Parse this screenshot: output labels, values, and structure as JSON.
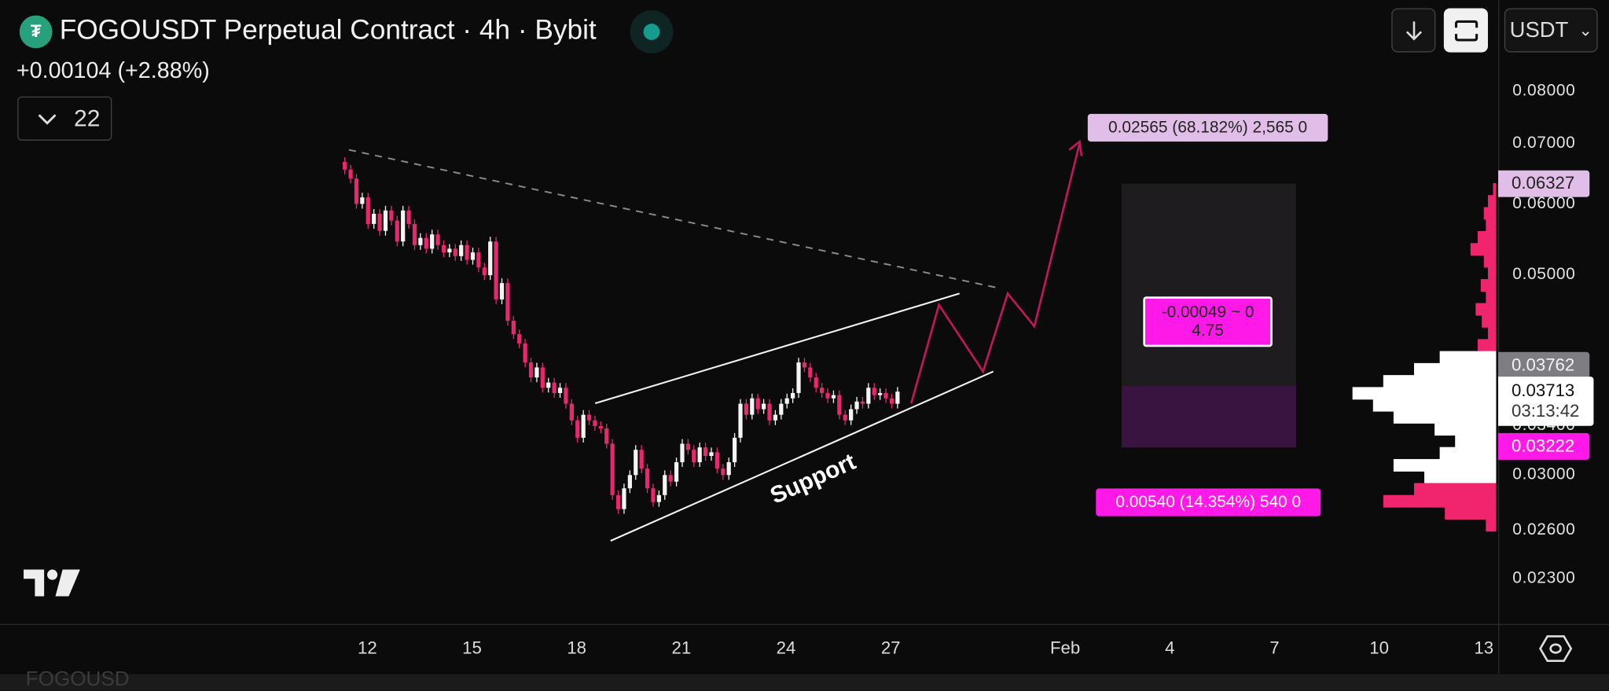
{
  "header": {
    "symbol_title": "FOGOUSDT Perpetual Contract · 4h · Bybit",
    "change": "+0.00104 (+2.88%)",
    "indicators_count": "22",
    "tether_icon": "tether-icon",
    "live_status_color": "#169b8f"
  },
  "toolbar": {
    "scroll_down_icon": "arrow-down-icon",
    "fullscreen_icon": "fullscreen-icon",
    "currency": "USDT",
    "currency_arrow": "⌄"
  },
  "price_axis": {
    "scale": "log",
    "ticks": [
      "0.08000",
      "0.07000",
      "0.06000",
      "0.05000",
      "0.03400",
      "0.03000",
      "0.02600",
      "0.02300"
    ],
    "tags": {
      "target": "0.06327",
      "high": "0.03762",
      "last": "0.03713",
      "countdown": "03:13:42",
      "stop": "0.03222"
    }
  },
  "time_axis": {
    "ticks": [
      "12",
      "15",
      "18",
      "21",
      "24",
      "27",
      "Feb",
      "4",
      "7",
      "10",
      "13"
    ]
  },
  "drawings": {
    "support_label": "Support",
    "position_target": "0.02565 (68.182%) 2,565 0",
    "position_center_line1": "-0.00049 ~ 0",
    "position_center_line2": "4.75",
    "position_stop": "0.00540 (14.354%) 540 0"
  },
  "colors": {
    "up": "#f4f4f4",
    "down": "#e8286e",
    "projection": "#c2185b",
    "target_tag": "#e1bee7",
    "stop_tag": "#ff19e8",
    "last_tag": "#ffffff",
    "high_tag": "#7d7d82"
  },
  "watermark": "FOGOUSD",
  "settings_icon": "gear-hexagon-icon",
  "chart_data": {
    "type": "candlestick",
    "interval": "4h",
    "last_close": 0.03713,
    "closes": [
      0.0655,
      0.064,
      0.06,
      0.061,
      0.057,
      0.0585,
      0.056,
      0.059,
      0.0575,
      0.0545,
      0.059,
      0.057,
      0.054,
      0.055,
      0.0535,
      0.0555,
      0.054,
      0.053,
      0.0535,
      0.0525,
      0.054,
      0.052,
      0.053,
      0.051,
      0.05,
      0.0545,
      0.047,
      0.049,
      0.0445,
      0.043,
      0.042,
      0.04,
      0.0385,
      0.0395,
      0.0375,
      0.038,
      0.037,
      0.0375,
      0.036,
      0.0345,
      0.033,
      0.035,
      0.0345,
      0.034,
      0.0338,
      0.0325,
      0.0285,
      0.0275,
      0.029,
      0.03,
      0.032,
      0.0305,
      0.029,
      0.028,
      0.0285,
      0.03,
      0.0295,
      0.031,
      0.0325,
      0.032,
      0.031,
      0.0322,
      0.0315,
      0.0318,
      0.0305,
      0.03,
      0.031,
      0.033,
      0.036,
      0.035,
      0.0365,
      0.0355,
      0.036,
      0.0345,
      0.035,
      0.036,
      0.0365,
      0.037,
      0.04,
      0.0395,
      0.0385,
      0.0375,
      0.037,
      0.0365,
      0.0368,
      0.035,
      0.0345,
      0.0355,
      0.0362,
      0.036,
      0.0375,
      0.0368,
      0.037,
      0.0365,
      0.036,
      0.03713
    ],
    "volume_profile": {
      "price_range": [
        0.026,
        0.06327
      ],
      "value_area": [
        0.029,
        0.041
      ],
      "volumes_high_to_low": [
        3,
        8,
        12,
        10,
        18,
        25,
        12,
        8,
        15,
        10,
        20,
        14,
        8,
        18,
        55,
        80,
        110,
        140,
        120,
        100,
        60,
        40,
        55,
        100,
        70,
        80,
        110,
        50,
        10
      ]
    }
  }
}
